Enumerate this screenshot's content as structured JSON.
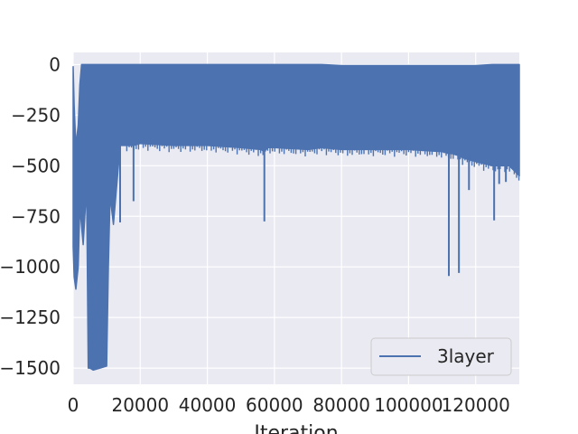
{
  "chart_data": {
    "type": "line",
    "title": "",
    "xlabel": "Iteration",
    "ylabel": "",
    "xlim": [
      0,
      133000
    ],
    "ylim": [
      -1580,
      60
    ],
    "x_ticks": [
      0,
      20000,
      40000,
      60000,
      80000,
      100000,
      120000
    ],
    "x_tick_labels": [
      "0",
      "20000",
      "40000",
      "60000",
      "80000",
      "100000",
      "120000"
    ],
    "y_ticks": [
      0,
      -250,
      -500,
      -750,
      -1000,
      -1250,
      -1500
    ],
    "y_tick_labels": [
      "0",
      "−250",
      "−500",
      "−750",
      "−1000",
      "−1250",
      "−1500"
    ],
    "grid": true,
    "legend_position": "lower-right",
    "series": [
      {
        "name": "3layer",
        "color": "#4c72b0",
        "envelope_x": [
          0,
          300,
          800,
          1500,
          2000,
          2500,
          3000,
          4000,
          4500,
          5000,
          6000,
          8000,
          10000,
          10500,
          11000,
          12000,
          14000,
          16000,
          18000,
          20000,
          30000,
          40000,
          50000,
          56000,
          57000,
          58000,
          60000,
          70000,
          74000,
          80000,
          90000,
          100000,
          110000,
          112000,
          113000,
          115000,
          116000,
          120000,
          125000,
          130000,
          133000
        ],
        "envelope_upper": [
          -10,
          -200,
          -400,
          -300,
          -100,
          0,
          0,
          0,
          0,
          0,
          0,
          0,
          0,
          0,
          0,
          0,
          0,
          0,
          0,
          0,
          0,
          0,
          0,
          0,
          0,
          0,
          0,
          0,
          0,
          -5,
          -5,
          -5,
          -5,
          -5,
          -5,
          -5,
          -5,
          -5,
          0,
          0,
          0
        ],
        "envelope_lower": [
          -900,
          -1050,
          -1110,
          -1000,
          -700,
          -800,
          -890,
          -600,
          -1500,
          -1500,
          -1510,
          -1500,
          -1490,
          -1000,
          -650,
          -790,
          -400,
          -400,
          -400,
          -390,
          -400,
          -400,
          -410,
          -420,
          -430,
          -410,
          -410,
          -420,
          -410,
          -420,
          -420,
          -420,
          -430,
          -440,
          -440,
          -450,
          -460,
          -480,
          -500,
          -500,
          -550
        ],
        "spikes": [
          {
            "x": 14000,
            "y": -780
          },
          {
            "x": 18000,
            "y": -675
          },
          {
            "x": 57000,
            "y": -775
          },
          {
            "x": 112000,
            "y": -1045
          },
          {
            "x": 115000,
            "y": -1030
          },
          {
            "x": 118000,
            "y": -620
          },
          {
            "x": 125500,
            "y": -770
          },
          {
            "x": 127000,
            "y": -590
          },
          {
            "x": 129000,
            "y": -580
          }
        ]
      }
    ]
  }
}
